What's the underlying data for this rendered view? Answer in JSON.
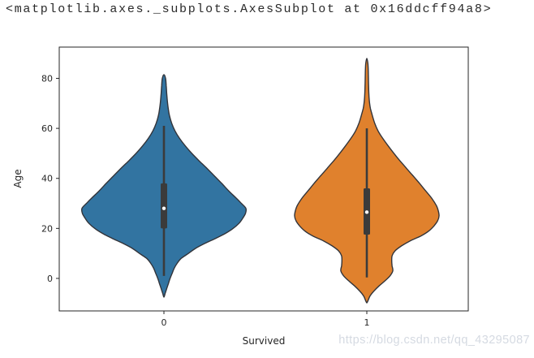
{
  "repr_line": "<matplotlib.axes._subplots.AxesSubplot at 0x16ddcff94a8>",
  "watermark": "https://blog.csdn.net/qq_43295087",
  "colors": {
    "background": "#ffffff",
    "violin_survived_0": "#3274a1",
    "violin_survived_1": "#e0812d",
    "violin_outline": "#32343a",
    "inner_box": "#3b3b3b",
    "median_dot": "#ffffff",
    "axis": "#262626",
    "tick_label": "#262626",
    "repr_text": "#2a2a2a",
    "watermark_text": "#d5dae2"
  },
  "chart_data": {
    "type": "violin",
    "title": "",
    "xlabel": "Survived",
    "ylabel": "Age",
    "categories": [
      "0",
      "1"
    ],
    "yticks": [
      0,
      20,
      40,
      60,
      80
    ],
    "ylim": [
      -13,
      92.5
    ],
    "xlim": [
      -0.52,
      1.5
    ],
    "grid": false,
    "legend": null,
    "series": [
      {
        "name": "Survived = 0",
        "category": "0",
        "position": 0,
        "color": "#3274a1",
        "summary": {
          "whisker_low": 1,
          "q1": 20,
          "median": 28,
          "q3": 38,
          "whisker_high": 61
        },
        "violin_range": [
          -7.5,
          81.5
        ],
        "max_halfwidth_axis_units": 0.404,
        "kde_profile": [
          [
            81.5,
            0
          ],
          [
            80,
            0.02
          ],
          [
            77,
            0.028
          ],
          [
            74,
            0.034
          ],
          [
            71,
            0.042
          ],
          [
            68,
            0.052
          ],
          [
            65,
            0.068
          ],
          [
            62,
            0.095
          ],
          [
            59,
            0.135
          ],
          [
            56,
            0.19
          ],
          [
            53,
            0.26
          ],
          [
            50,
            0.34
          ],
          [
            47,
            0.43
          ],
          [
            44,
            0.525
          ],
          [
            41,
            0.615
          ],
          [
            38,
            0.705
          ],
          [
            35,
            0.79
          ],
          [
            32,
            0.885
          ],
          [
            30,
            0.945
          ],
          [
            28,
            1.0
          ],
          [
            26,
            0.995
          ],
          [
            24,
            0.96
          ],
          [
            22,
            0.915
          ],
          [
            20,
            0.845
          ],
          [
            18,
            0.75
          ],
          [
            16,
            0.63
          ],
          [
            14,
            0.5
          ],
          [
            12,
            0.385
          ],
          [
            10,
            0.3
          ],
          [
            8,
            0.21
          ],
          [
            6,
            0.16
          ],
          [
            4,
            0.125
          ],
          [
            2,
            0.1
          ],
          [
            0,
            0.075
          ],
          [
            -2,
            0.055
          ],
          [
            -4,
            0.035
          ],
          [
            -6,
            0.015
          ],
          [
            -7.5,
            0
          ]
        ]
      },
      {
        "name": "Survived = 1",
        "category": "1",
        "position": 1,
        "color": "#e0812d",
        "summary": {
          "whisker_low": 0.4,
          "q1": 17.5,
          "median": 26.5,
          "q3": 36,
          "whisker_high": 60
        },
        "violin_range": [
          -9.8,
          88
        ],
        "max_halfwidth_axis_units": 0.356,
        "kde_profile": [
          [
            88,
            0
          ],
          [
            86,
            0.015
          ],
          [
            83,
            0.02
          ],
          [
            80,
            0.022
          ],
          [
            77,
            0.025
          ],
          [
            74,
            0.028
          ],
          [
            71,
            0.035
          ],
          [
            68,
            0.05
          ],
          [
            65,
            0.078
          ],
          [
            62,
            0.11
          ],
          [
            59,
            0.155
          ],
          [
            56,
            0.22
          ],
          [
            53,
            0.295
          ],
          [
            50,
            0.375
          ],
          [
            47,
            0.46
          ],
          [
            44,
            0.55
          ],
          [
            41,
            0.64
          ],
          [
            38,
            0.73
          ],
          [
            35,
            0.815
          ],
          [
            32,
            0.9
          ],
          [
            29,
            0.965
          ],
          [
            27,
            0.99
          ],
          [
            25,
            1.0
          ],
          [
            23,
            0.98
          ],
          [
            21,
            0.93
          ],
          [
            19,
            0.86
          ],
          [
            17,
            0.75
          ],
          [
            15,
            0.6
          ],
          [
            13,
            0.48
          ],
          [
            11,
            0.39
          ],
          [
            9,
            0.35
          ],
          [
            7,
            0.345
          ],
          [
            5,
            0.35
          ],
          [
            3,
            0.36
          ],
          [
            1,
            0.32
          ],
          [
            -1,
            0.25
          ],
          [
            -3,
            0.17
          ],
          [
            -5,
            0.1
          ],
          [
            -7,
            0.045
          ],
          [
            -9,
            0.015
          ],
          [
            -9.8,
            0
          ]
        ]
      }
    ]
  }
}
